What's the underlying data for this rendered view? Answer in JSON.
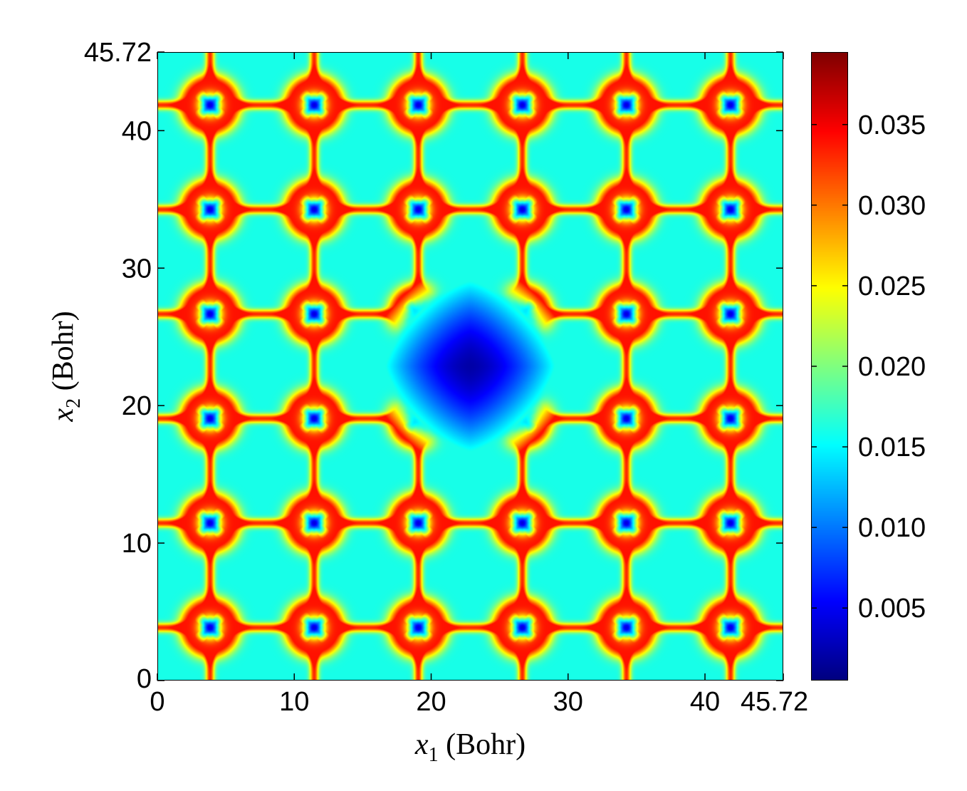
{
  "chart_data": {
    "type": "heatmap",
    "title": "",
    "xlabel": {
      "var": "x",
      "sub": "1",
      "unit": "(Bohr)"
    },
    "ylabel": {
      "var": "x",
      "sub": "2",
      "unit": "(Bohr)"
    },
    "xlim": [
      0,
      45.72
    ],
    "ylim": [
      0,
      45.72
    ],
    "xticks": [
      0,
      10,
      20,
      30,
      40,
      45.72
    ],
    "xtick_labels": [
      "0",
      "10",
      "20",
      "30",
      "40",
      "45.72"
    ],
    "yticks": [
      0,
      10,
      20,
      30,
      40,
      45.72
    ],
    "ytick_labels": [
      "0",
      "10",
      "20",
      "30",
      "40",
      "45.72"
    ],
    "colorbar": {
      "range": [
        0.0005,
        0.0395
      ],
      "ticks": [
        0.005,
        0.01,
        0.015,
        0.02,
        0.025,
        0.03,
        0.035
      ],
      "tick_labels": [
        "0.005",
        "0.010",
        "0.015",
        "0.020",
        "0.025",
        "0.030",
        "0.035"
      ],
      "colormap": "jet"
    },
    "field": {
      "description": "periodic lattice density with a central vacancy",
      "lattice_spacing": 7.62,
      "site_offset": 3.81,
      "vacancy_center": [
        22.86,
        22.86
      ],
      "max_value": 0.034,
      "site_min_value": 0.004,
      "interstitial_value": 0.016,
      "vacancy_min_value": 0.002
    }
  }
}
